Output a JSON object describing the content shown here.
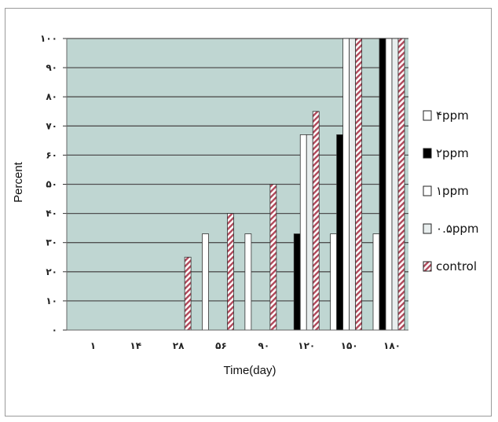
{
  "chart_data": {
    "type": "bar",
    "title": "",
    "xlabel": "Time(day)",
    "ylabel": "Percent",
    "categories": [
      "١",
      "١۴",
      "٢٨",
      "۵۶",
      "٩٠",
      "١٢٠",
      "١۵٠",
      "١٨٠"
    ],
    "y_tick_labels": [
      "٠",
      "١٠",
      "٢٠",
      "٣٠",
      "۴٠",
      "۵٠",
      "۶٠",
      "٧٠",
      "٨٠",
      "٩٠",
      "١٠٠"
    ],
    "ylim": [
      0,
      100
    ],
    "grid": true,
    "legend_position": "right",
    "series": [
      {
        "name": "۴ppm",
        "style": "white",
        "values": [
          0,
          0,
          0,
          33,
          33,
          0,
          33,
          33
        ]
      },
      {
        "name": "٢ppm",
        "style": "black",
        "values": [
          0,
          0,
          0,
          0,
          0,
          33,
          67,
          100
        ]
      },
      {
        "name": "١ppm",
        "style": "white",
        "values": [
          0,
          0,
          0,
          0,
          0,
          67,
          100,
          100
        ]
      },
      {
        "name": "٠.۵ppm",
        "style": "light",
        "values": [
          0,
          0,
          0,
          0,
          0,
          67,
          100,
          100
        ]
      },
      {
        "name": "control",
        "style": "hatched",
        "values": [
          0,
          0,
          25,
          40,
          50,
          75,
          100,
          100
        ]
      }
    ],
    "colors": {
      "plot_background": "#bfd6d2",
      "grid": "#505050",
      "hatch_color": "#b0485a",
      "black_bar": "#000000",
      "light_bar": "#e8eeee"
    }
  }
}
